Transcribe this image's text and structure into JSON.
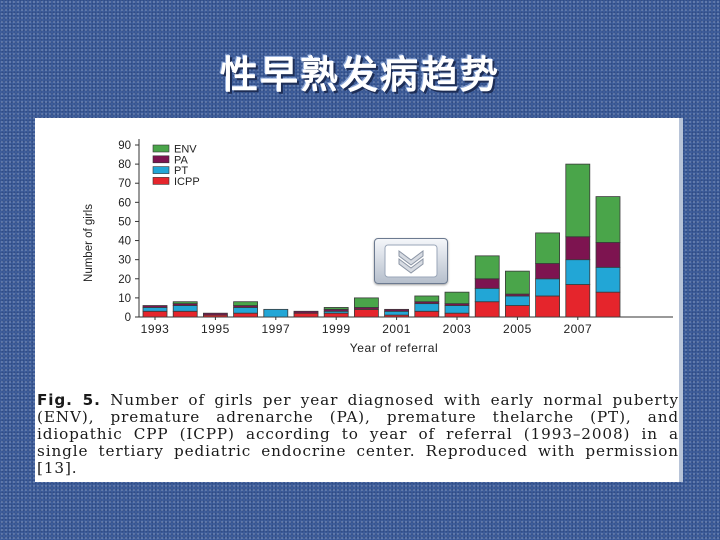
{
  "slide": {
    "title": "性早熟发病趋势"
  },
  "colors": {
    "ENV": "#4aa54a",
    "PA": "#7d1450",
    "PT": "#22a6d6",
    "ICPP": "#e5252c"
  },
  "chart_data": {
    "type": "bar",
    "stacked": true,
    "title": "",
    "xlabel": "Year of referral",
    "ylabel": "Number of girls",
    "ylim": [
      0,
      90
    ],
    "yticks": [
      0,
      10,
      20,
      30,
      40,
      50,
      60,
      70,
      80,
      90
    ],
    "x_tick_labels": [
      "1993",
      "1995",
      "1997",
      "1999",
      "2001",
      "2003",
      "2005",
      "2007"
    ],
    "categories": [
      "1993",
      "1994",
      "1995",
      "1996",
      "1997",
      "1998",
      "1999",
      "2000",
      "2001",
      "2002",
      "2003",
      "2004",
      "2005",
      "2006",
      "2007",
      "2008"
    ],
    "legend_placement": "top-left",
    "series": [
      {
        "name": "ICPP",
        "values": [
          3,
          3,
          1,
          2,
          0,
          2,
          2,
          4,
          1,
          3,
          2,
          8,
          6,
          11,
          17,
          13
        ]
      },
      {
        "name": "PT",
        "values": [
          2,
          3,
          0,
          3,
          4,
          0,
          1,
          0,
          2,
          4,
          4,
          7,
          5,
          9,
          13,
          13
        ]
      },
      {
        "name": "PA",
        "values": [
          1,
          1,
          1,
          1,
          0,
          1,
          1,
          1,
          1,
          1,
          1,
          5,
          1,
          8,
          12,
          13
        ]
      },
      {
        "name": "ENV",
        "values": [
          0,
          1,
          0,
          2,
          0,
          0,
          1,
          5,
          0,
          3,
          6,
          12,
          12,
          16,
          38,
          24
        ]
      }
    ]
  },
  "legend": {
    "items": [
      "ENV",
      "PA",
      "PT",
      "ICPP"
    ]
  },
  "caption": {
    "label": "Fig. 5.",
    "text": " Number of girls per year diagnosed with early normal puberty (ENV), premature adrenarche (PA), premature thelarche (PT), and idiopathic CPP (ICPP) according to year of referral (1993–2008) in a single tertiary pediatric endocrine center. Reproduced with permission [13]."
  },
  "nav_button": {
    "icon": "double-chevron-down-icon"
  }
}
